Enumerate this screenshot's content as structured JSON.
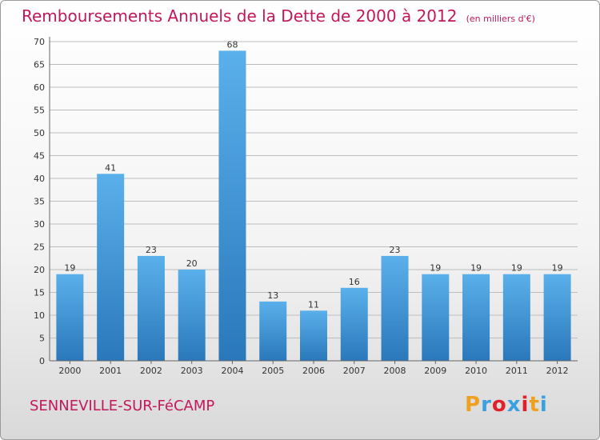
{
  "header": {
    "title": "Remboursements Annuels de la Dette de 2000 à 2012",
    "unit": "(en milliers d'€)"
  },
  "footer": {
    "city": "SENNEVILLE-SUR-FéCAMP",
    "logo": {
      "text": "Proxiti",
      "colors": [
        "#f0a020",
        "#3aa0e0",
        "#e0202a",
        "#3aa0e0",
        "#e0202a",
        "#f0a020",
        "#3aa0e0"
      ]
    }
  },
  "colors": {
    "title": "#c2185b",
    "bar_top": "#5ab0ea",
    "bar_bottom": "#2a78bb",
    "grid": "#bdbdbd"
  },
  "chart_data": {
    "type": "bar",
    "title": "Remboursements Annuels de la Dette de 2000 à 2012",
    "subtitle": "(en milliers d'€)",
    "categories": [
      "2000",
      "2001",
      "2002",
      "2003",
      "2004",
      "2005",
      "2006",
      "2007",
      "2008",
      "2009",
      "2010",
      "2011",
      "2012"
    ],
    "values": [
      19,
      41,
      23,
      20,
      68,
      13,
      11,
      16,
      23,
      19,
      19,
      19,
      19
    ],
    "ylim": [
      0,
      70
    ],
    "yticks": [
      0,
      5,
      10,
      15,
      20,
      25,
      30,
      35,
      40,
      45,
      50,
      55,
      60,
      65,
      70
    ],
    "grid": true,
    "data_labels": true
  }
}
